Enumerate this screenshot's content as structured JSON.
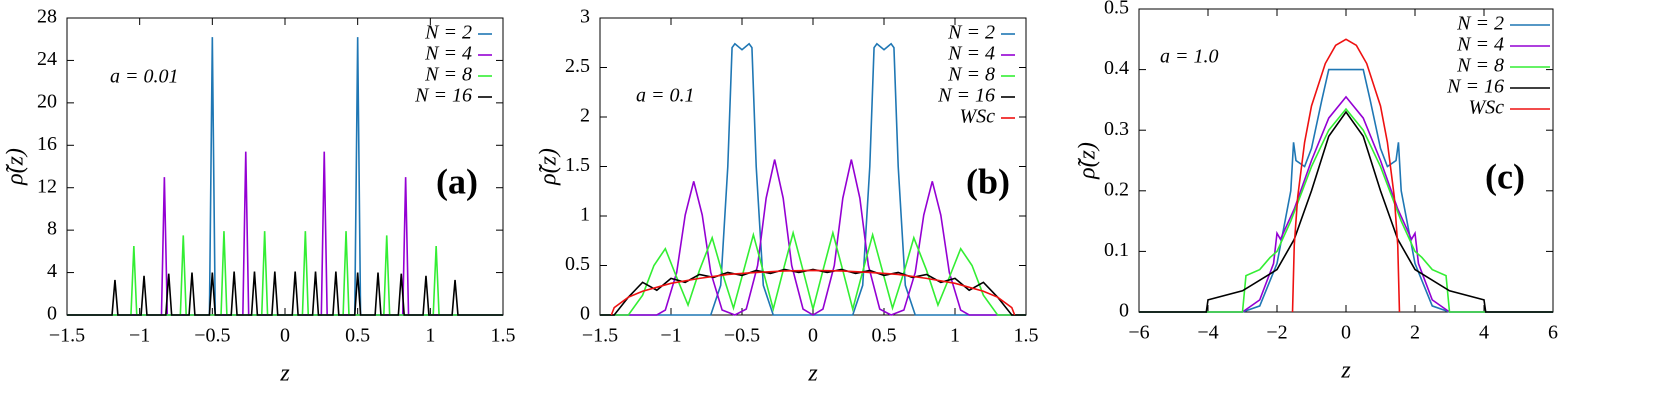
{
  "chart_data": [
    {
      "type": "line",
      "xlabel": "z",
      "ylabel": "ρ̃(z)",
      "annotation": "a = 0.01",
      "panel_label": "(a)",
      "legend": "upper right",
      "xlim": [
        -1.5,
        1.5
      ],
      "ylim": [
        0,
        28
      ],
      "xticks": [
        {
          "value": -1.5,
          "label": "−1.5"
        },
        {
          "value": -1,
          "label": "−1"
        },
        {
          "value": -0.5,
          "label": "−0.5"
        },
        0,
        0.5,
        1,
        1.5
      ],
      "yticks": [
        0,
        4,
        8,
        12,
        16,
        20,
        24,
        28
      ],
      "series": [
        {
          "name": "N = 2",
          "color": "#1f77b4",
          "x": [
            -1.5,
            -0.52,
            -0.5,
            -0.48,
            0.48,
            0.5,
            0.52,
            1.5
          ],
          "values": [
            0,
            0,
            26.2,
            0,
            0,
            26.2,
            0,
            0
          ]
        },
        {
          "name": "N = 4",
          "color": "#9400d3",
          "x": [
            -1.5,
            -0.85,
            -0.83,
            -0.81,
            -0.29,
            -0.27,
            -0.25,
            0.25,
            0.27,
            0.29,
            0.81,
            0.83,
            0.85,
            1.5
          ],
          "values": [
            0,
            0,
            13,
            0,
            0,
            15.4,
            0,
            0,
            15.4,
            0,
            0,
            13,
            0,
            0
          ]
        },
        {
          "name": "N = 8",
          "color": "#33ee33",
          "x": [
            -1.5,
            -1.06,
            -1.04,
            -1.02,
            -0.72,
            -0.7,
            -0.68,
            -0.44,
            -0.42,
            -0.4,
            -0.16,
            -0.14,
            -0.12,
            0.12,
            0.14,
            0.16,
            0.4,
            0.42,
            0.44,
            0.68,
            0.7,
            0.72,
            1.02,
            1.04,
            1.06,
            1.5
          ],
          "values": [
            0,
            0,
            6.5,
            0,
            0,
            7.5,
            0,
            0,
            7.9,
            0,
            0,
            7.9,
            0,
            0,
            7.9,
            0,
            0,
            7.9,
            0,
            0,
            7.5,
            0,
            0,
            6.5,
            0,
            0
          ]
        },
        {
          "name": "N = 16",
          "color": "#000000",
          "x": [
            -1.5,
            -1.19,
            -1.17,
            -1.15,
            -0.99,
            -0.97,
            -0.95,
            -0.82,
            -0.8,
            -0.78,
            -0.66,
            -0.64,
            -0.62,
            -0.52,
            -0.5,
            -0.48,
            -0.37,
            -0.35,
            -0.33,
            -0.23,
            -0.21,
            -0.19,
            -0.09,
            -0.07,
            -0.05,
            0.05,
            0.07,
            0.09,
            0.19,
            0.21,
            0.23,
            0.33,
            0.35,
            0.37,
            0.48,
            0.5,
            0.52,
            0.62,
            0.64,
            0.66,
            0.78,
            0.8,
            0.82,
            0.95,
            0.97,
            0.99,
            1.15,
            1.17,
            1.19,
            1.5
          ],
          "values": [
            0,
            0,
            3.3,
            0,
            0,
            3.7,
            0,
            0,
            3.9,
            0,
            0,
            4.0,
            0,
            0,
            4.0,
            0,
            0,
            4.1,
            0,
            0,
            4.1,
            0,
            0,
            4.1,
            0,
            0,
            4.1,
            0,
            0,
            4.1,
            0,
            0,
            4.1,
            0,
            0,
            4.0,
            0,
            0,
            4.0,
            0,
            0,
            3.9,
            0,
            0,
            3.7,
            0,
            0,
            3.3,
            0,
            0
          ]
        }
      ]
    },
    {
      "type": "line",
      "xlabel": "z",
      "ylabel": "ρ̃(z)",
      "annotation": "a = 0.1",
      "panel_label": "(b)",
      "legend": "upper right",
      "xlim": [
        -1.5,
        1.5
      ],
      "ylim": [
        0,
        3
      ],
      "xticks": [
        {
          "value": -1.5,
          "label": "−1.5"
        },
        {
          "value": -1,
          "label": "−1"
        },
        {
          "value": -0.5,
          "label": "−0.5"
        },
        0,
        0.5,
        1,
        1.5
      ],
      "yticks": [
        0,
        0.5,
        1,
        1.5,
        2,
        2.5,
        3
      ],
      "series": [
        {
          "name": "N = 2",
          "color": "#1f77b4",
          "x": [
            -1.5,
            -0.72,
            -0.65,
            -0.6,
            -0.57,
            -0.55,
            -0.5,
            -0.45,
            -0.43,
            -0.4,
            -0.35,
            -0.28,
            0.28,
            0.35,
            0.4,
            0.43,
            0.45,
            0.5,
            0.55,
            0.57,
            0.6,
            0.65,
            0.72,
            1.5
          ],
          "values": [
            0,
            0,
            0.3,
            1.5,
            2.7,
            2.74,
            2.68,
            2.74,
            2.7,
            1.5,
            0.3,
            0,
            0,
            0.3,
            1.5,
            2.7,
            2.74,
            2.68,
            2.74,
            2.7,
            1.5,
            0.3,
            0,
            0
          ]
        },
        {
          "name": "N = 4",
          "color": "#9400d3",
          "x": [
            -1.5,
            -1.1,
            -1.04,
            -0.96,
            -0.9,
            -0.84,
            -0.78,
            -0.72,
            -0.64,
            -0.55,
            -0.47,
            -0.39,
            -0.33,
            -0.27,
            -0.21,
            -0.15,
            -0.07,
            0,
            0.07,
            0.15,
            0.21,
            0.27,
            0.33,
            0.39,
            0.47,
            0.55,
            0.64,
            0.72,
            0.78,
            0.84,
            0.9,
            0.96,
            1.04,
            1.1,
            1.5
          ],
          "values": [
            0,
            0,
            0.05,
            0.43,
            1.01,
            1.35,
            1.01,
            0.43,
            0.05,
            0,
            0.06,
            0.5,
            1.18,
            1.57,
            1.18,
            0.5,
            0.06,
            0,
            0.06,
            0.5,
            1.18,
            1.57,
            1.18,
            0.5,
            0.06,
            0,
            0.05,
            0.43,
            1.01,
            1.35,
            1.01,
            0.43,
            0.05,
            0,
            0
          ]
        },
        {
          "name": "N = 8",
          "color": "#33ee33",
          "x": [
            -1.5,
            -1.3,
            -1.2,
            -1.12,
            -1.04,
            -0.96,
            -0.88,
            -0.8,
            -0.71,
            -0.64,
            -0.56,
            -0.49,
            -0.42,
            -0.35,
            -0.28,
            -0.21,
            -0.14,
            -0.07,
            0,
            0.07,
            0.14,
            0.21,
            0.28,
            0.35,
            0.42,
            0.49,
            0.56,
            0.64,
            0.71,
            0.8,
            0.88,
            0.96,
            1.04,
            1.12,
            1.2,
            1.3,
            1.5
          ],
          "values": [
            0,
            0,
            0.2,
            0.5,
            0.67,
            0.38,
            0.1,
            0.45,
            0.78,
            0.43,
            0.07,
            0.44,
            0.81,
            0.44,
            0.06,
            0.45,
            0.83,
            0.45,
            0.06,
            0.45,
            0.83,
            0.45,
            0.06,
            0.44,
            0.81,
            0.44,
            0.07,
            0.43,
            0.78,
            0.45,
            0.1,
            0.38,
            0.67,
            0.5,
            0.2,
            0,
            0
          ]
        },
        {
          "name": "N = 16",
          "color": "#000000",
          "x": [
            -1.5,
            -1.4,
            -1.3,
            -1.2,
            -1.1,
            -1.0,
            -0.9,
            -0.8,
            -0.7,
            -0.6,
            -0.5,
            -0.4,
            -0.3,
            -0.2,
            -0.1,
            0,
            0.1,
            0.2,
            0.3,
            0.4,
            0.5,
            0.6,
            0.7,
            0.8,
            0.9,
            1.0,
            1.1,
            1.2,
            1.3,
            1.4,
            1.5
          ],
          "values": [
            0,
            0,
            0.18,
            0.33,
            0.25,
            0.37,
            0.33,
            0.41,
            0.38,
            0.43,
            0.4,
            0.45,
            0.42,
            0.46,
            0.43,
            0.46,
            0.43,
            0.46,
            0.42,
            0.45,
            0.4,
            0.43,
            0.38,
            0.41,
            0.33,
            0.37,
            0.25,
            0.33,
            0.18,
            0,
            0
          ]
        },
        {
          "name": "WSc",
          "color": "#ee1111",
          "x": [
            -1.42,
            -1.4,
            -1.3,
            -1.2,
            -1.0,
            -0.8,
            -0.6,
            -0.4,
            -0.2,
            0,
            0.2,
            0.4,
            0.6,
            0.8,
            1.0,
            1.2,
            1.3,
            1.4,
            1.42
          ],
          "values": [
            0,
            0.075,
            0.18,
            0.24,
            0.32,
            0.37,
            0.41,
            0.43,
            0.445,
            0.45,
            0.445,
            0.43,
            0.41,
            0.37,
            0.32,
            0.24,
            0.18,
            0.075,
            0
          ]
        }
      ]
    },
    {
      "type": "line",
      "xlabel": "z",
      "ylabel": "ρ̃(z)",
      "annotation": "a = 1.0",
      "panel_label": "(c)",
      "legend": "upper right",
      "xlim": [
        -6,
        6
      ],
      "ylim": [
        0,
        0.5
      ],
      "xticks": [
        {
          "value": -6,
          "label": "−6"
        },
        {
          "value": -4,
          "label": "−4"
        },
        {
          "value": -2,
          "label": "−2"
        },
        0,
        2,
        4,
        6
      ],
      "yticks": [
        0,
        0.1,
        0.2,
        0.3,
        0.4,
        0.5
      ],
      "series": [
        {
          "name": "N = 2",
          "color": "#1f77b4",
          "x": [
            -6,
            -3,
            -2.5,
            -2,
            -1.6,
            -1.52,
            -1.45,
            -1.2,
            -1.0,
            -0.7,
            -0.5,
            0.5,
            0.7,
            1.0,
            1.2,
            1.45,
            1.52,
            1.6,
            2,
            2.5,
            3,
            6
          ],
          "values": [
            0,
            0,
            0.01,
            0.08,
            0.2,
            0.28,
            0.25,
            0.24,
            0.27,
            0.35,
            0.4,
            0.4,
            0.35,
            0.27,
            0.24,
            0.25,
            0.28,
            0.2,
            0.08,
            0.01,
            0,
            0
          ]
        },
        {
          "name": "N = 4",
          "color": "#9400d3",
          "x": [
            -6,
            -3,
            -2.5,
            -2.1,
            -2.0,
            -1.9,
            -1.5,
            -1,
            -0.5,
            0,
            0.5,
            1,
            1.5,
            1.9,
            2.0,
            2.1,
            2.5,
            3,
            6
          ],
          "values": [
            0,
            0,
            0.02,
            0.08,
            0.13,
            0.12,
            0.17,
            0.25,
            0.32,
            0.355,
            0.32,
            0.25,
            0.17,
            0.12,
            0.13,
            0.08,
            0.02,
            0,
            0
          ]
        },
        {
          "name": "N = 8",
          "color": "#33ee33",
          "x": [
            -6,
            -3,
            -2.9,
            -2.5,
            -2.2,
            -2,
            -1.6,
            -1,
            -0.5,
            0,
            0.5,
            1,
            1.6,
            2,
            2.2,
            2.5,
            2.9,
            3,
            6
          ],
          "values": [
            0,
            0,
            0.06,
            0.07,
            0.09,
            0.1,
            0.15,
            0.24,
            0.3,
            0.335,
            0.3,
            0.24,
            0.15,
            0.1,
            0.09,
            0.07,
            0.06,
            0,
            0
          ]
        },
        {
          "name": "N = 16",
          "color": "#000000",
          "x": [
            -6,
            -4.05,
            -4,
            -3,
            -2,
            -1.5,
            -1,
            -0.5,
            0,
            0.5,
            1,
            1.5,
            2,
            3,
            4,
            4.05,
            6
          ],
          "values": [
            0,
            0,
            0.02,
            0.035,
            0.07,
            0.12,
            0.2,
            0.29,
            0.33,
            0.29,
            0.2,
            0.12,
            0.07,
            0.035,
            0.02,
            0,
            0
          ]
        },
        {
          "name": "WSc",
          "color": "#ee1111",
          "x": [
            -1.55,
            -1.5,
            -1.4,
            -1.2,
            -1,
            -0.6,
            -0.3,
            0,
            0.3,
            0.6,
            1,
            1.2,
            1.4,
            1.5,
            1.55
          ],
          "values": [
            0,
            0.11,
            0.19,
            0.28,
            0.34,
            0.41,
            0.44,
            0.45,
            0.44,
            0.41,
            0.34,
            0.28,
            0.19,
            0.11,
            0
          ]
        }
      ]
    }
  ]
}
